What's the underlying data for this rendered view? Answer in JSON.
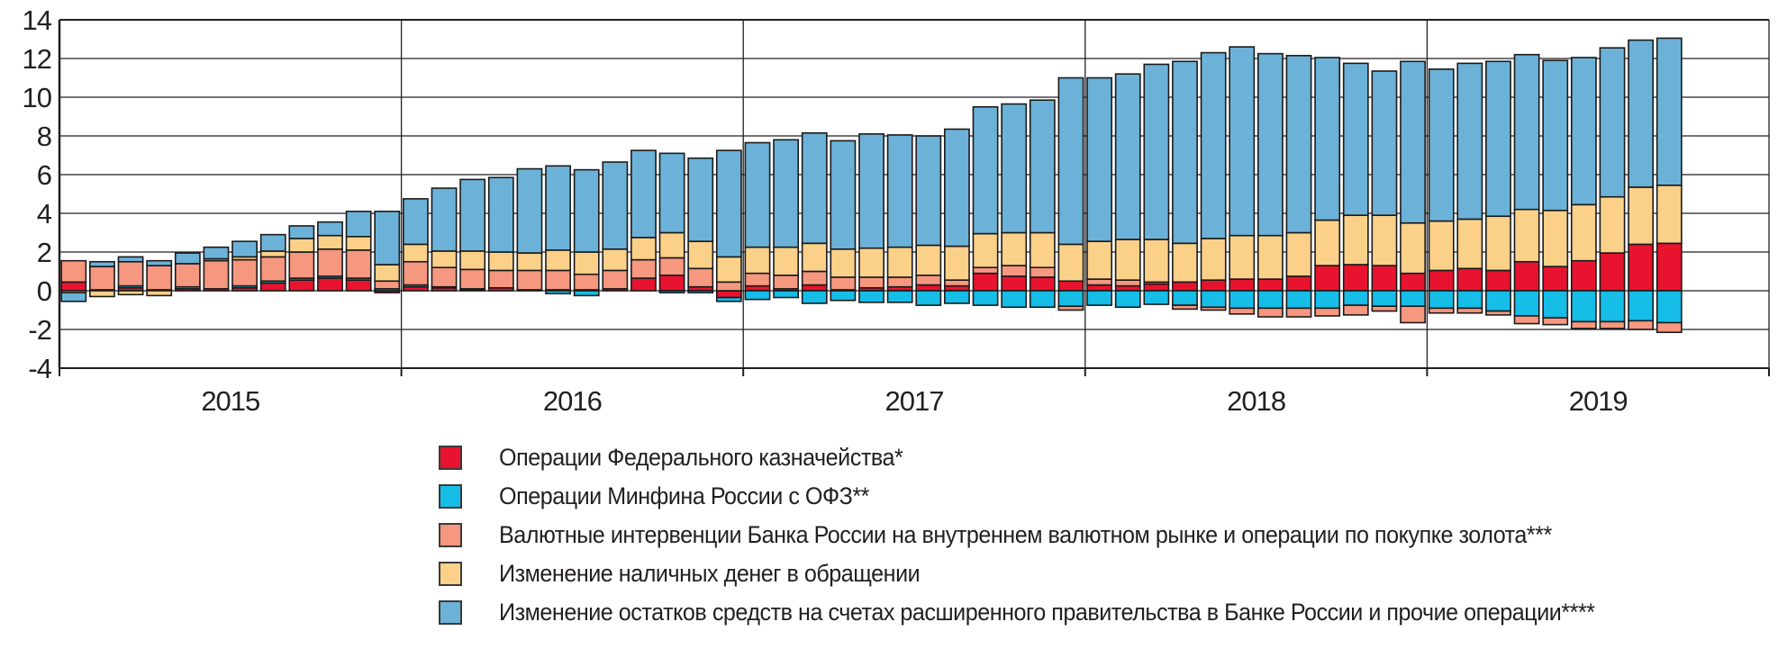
{
  "chart_data": {
    "type": "bar",
    "stacked": true,
    "title": "",
    "xlabel": "",
    "ylabel": "",
    "ylim": [
      -4,
      14
    ],
    "y_ticks": [
      14,
      12,
      10,
      8,
      6,
      4,
      2,
      0,
      -2,
      -4
    ],
    "grid": true,
    "legend_position": "bottom",
    "x_year_labels": [
      "2015",
      "2016",
      "2017",
      "2018",
      "2019"
    ],
    "bars_per_year": [
      12,
      12,
      12,
      12,
      9
    ],
    "n_bars": 57,
    "colors": {
      "axis": "#231f20",
      "grid": "#231f20",
      "bar_border": "#1a1a1a",
      "text": "#231f20",
      "background": "#ffffff"
    },
    "series": [
      {
        "name": "Операции Федерального казначейства*",
        "color": "#e8132e",
        "values": [
          0.45,
          0.05,
          0.15,
          0.05,
          0.1,
          0.1,
          0.15,
          0.4,
          0.55,
          0.65,
          0.55,
          -0.1,
          0.2,
          0.15,
          0.05,
          0.15,
          0.05,
          0.05,
          0.05,
          0.1,
          0.65,
          0.8,
          0.2,
          -0.35,
          0.25,
          0.1,
          0.3,
          0.05,
          0.15,
          0.2,
          0.3,
          0.25,
          0.9,
          0.75,
          0.7,
          0.5,
          0.3,
          0.25,
          0.35,
          0.45,
          0.55,
          0.6,
          0.6,
          0.75,
          1.3,
          1.35,
          1.3,
          0.9,
          1.05,
          1.15,
          1.05,
          1.5,
          1.25,
          1.55,
          1.95,
          2.4,
          2.45
        ]
      },
      {
        "name": "Операции Минфина России с ОФЗ**",
        "color": "#16bde7",
        "values": [
          0.0,
          0.0,
          0.1,
          0.0,
          0.1,
          0.0,
          0.1,
          0.1,
          0.1,
          0.1,
          0.1,
          0.1,
          0.1,
          0.05,
          0.05,
          0.0,
          0.0,
          -0.15,
          -0.25,
          0.0,
          0.0,
          -0.1,
          -0.1,
          -0.2,
          -0.45,
          -0.35,
          -0.65,
          -0.5,
          -0.6,
          -0.6,
          -0.75,
          -0.65,
          -0.75,
          -0.85,
          -0.85,
          -0.8,
          -0.75,
          -0.85,
          -0.7,
          -0.75,
          -0.85,
          -0.9,
          -0.9,
          -0.9,
          -0.9,
          -0.75,
          -0.8,
          -0.8,
          -0.9,
          -0.9,
          -1.05,
          -1.3,
          -1.4,
          -1.6,
          -1.6,
          -1.55,
          -1.65
        ]
      },
      {
        "name": "Валютные интервенции Банка России на внутреннем валютном рынке и операции по покупке золота***",
        "color": "#f6977f",
        "values": [
          1.1,
          1.2,
          1.25,
          1.25,
          1.2,
          1.45,
          1.35,
          1.25,
          1.35,
          1.4,
          1.45,
          0.4,
          1.2,
          1.0,
          1.0,
          0.9,
          1.0,
          1.0,
          0.8,
          0.95,
          0.95,
          0.9,
          0.95,
          0.45,
          0.65,
          0.7,
          0.7,
          0.65,
          0.55,
          0.5,
          0.5,
          0.3,
          0.3,
          0.55,
          0.5,
          -0.2,
          0.3,
          0.3,
          0.1,
          -0.2,
          -0.15,
          -0.3,
          -0.45,
          -0.45,
          -0.4,
          -0.5,
          -0.25,
          -0.85,
          -0.25,
          -0.25,
          -0.2,
          -0.4,
          -0.35,
          -0.35,
          -0.35,
          -0.45,
          -0.5
        ]
      },
      {
        "name": "Изменение наличных денег в обращении",
        "color": "#fbd189",
        "values": [
          -0.1,
          -0.3,
          -0.2,
          -0.25,
          0.0,
          0.1,
          0.15,
          0.3,
          0.7,
          0.7,
          0.7,
          0.85,
          0.9,
          0.85,
          0.95,
          0.95,
          0.9,
          1.05,
          1.15,
          1.1,
          1.15,
          1.3,
          1.4,
          1.3,
          1.35,
          1.45,
          1.45,
          1.45,
          1.5,
          1.55,
          1.55,
          1.75,
          1.75,
          1.7,
          1.8,
          1.9,
          1.95,
          2.1,
          2.2,
          2.0,
          2.15,
          2.25,
          2.25,
          2.25,
          2.35,
          2.55,
          2.6,
          2.6,
          2.55,
          2.55,
          2.8,
          2.7,
          2.9,
          2.9,
          2.9,
          2.95,
          3.0
        ]
      },
      {
        "name": "Изменение остатков средств на счетах расширенного правительства в Банке России и прочие операции****",
        "color": "#6cb2d8",
        "values": [
          -0.45,
          0.25,
          0.25,
          0.25,
          0.55,
          0.6,
          0.8,
          0.85,
          0.65,
          0.7,
          1.3,
          2.75,
          2.35,
          3.25,
          3.7,
          3.85,
          4.35,
          4.35,
          4.25,
          4.5,
          4.5,
          4.1,
          4.3,
          5.5,
          5.4,
          5.55,
          5.7,
          5.6,
          5.9,
          5.8,
          5.65,
          6.05,
          6.55,
          6.65,
          6.85,
          8.6,
          8.45,
          8.55,
          9.05,
          9.4,
          9.6,
          9.75,
          9.4,
          9.15,
          8.4,
          7.85,
          7.45,
          8.35,
          7.85,
          8.05,
          8.0,
          8.0,
          7.75,
          7.6,
          7.7,
          7.6,
          7.6
        ]
      }
    ]
  }
}
